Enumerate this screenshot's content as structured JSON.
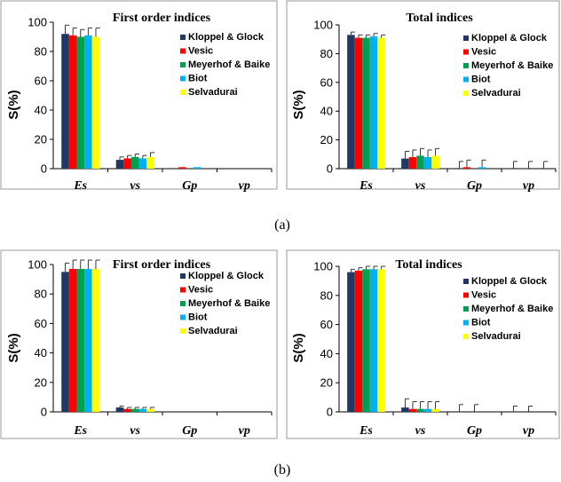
{
  "figure": {
    "captions": [
      "(a)",
      "(b)"
    ]
  },
  "chart_data": [
    {
      "type": "bar",
      "title": "First order indices",
      "ylabel": "S(%)",
      "xlabel": "",
      "ylim": [
        0,
        100
      ],
      "yticks": [
        0,
        20,
        40,
        60,
        80,
        100
      ],
      "categories": [
        "Es",
        "vs",
        "Gp",
        "vp"
      ],
      "legend_position": "top-right",
      "series": [
        {
          "name": "Kloppel & Glock",
          "color": "#1f3864",
          "values": [
            92,
            6,
            0,
            0
          ],
          "errors": [
            6,
            2,
            0,
            0
          ]
        },
        {
          "name": "Vesic",
          "color": "#ff0000",
          "values": [
            91,
            7,
            1,
            0
          ],
          "errors": [
            5,
            2,
            0,
            0
          ]
        },
        {
          "name": "Meyerhof & Baike",
          "color": "#00a050",
          "values": [
            90,
            8,
            0,
            0
          ],
          "errors": [
            5,
            2,
            0,
            0
          ]
        },
        {
          "name": "Biot",
          "color": "#00b0f0",
          "values": [
            91,
            7,
            1,
            0
          ],
          "errors": [
            5,
            2,
            0,
            0
          ]
        },
        {
          "name": "Selvadurai",
          "color": "#ffff00",
          "values": [
            90,
            8,
            0,
            0
          ],
          "errors": [
            6,
            3,
            0,
            0
          ]
        }
      ]
    },
    {
      "type": "bar",
      "title": "Total indices",
      "ylabel": "S(%)",
      "xlabel": "",
      "ylim": [
        0,
        100
      ],
      "yticks": [
        0,
        20,
        40,
        60,
        80,
        100
      ],
      "categories": [
        "Es",
        "vs",
        "Gp",
        "vp"
      ],
      "legend_position": "top-right",
      "series": [
        {
          "name": "Kloppel & Glock",
          "color": "#1f3864",
          "values": [
            93,
            7,
            0,
            0
          ],
          "errors": [
            2,
            5,
            5,
            5
          ]
        },
        {
          "name": "Vesic",
          "color": "#ff0000",
          "values": [
            91,
            8,
            1,
            0
          ],
          "errors": [
            2,
            5,
            5,
            0
          ]
        },
        {
          "name": "Meyerhof & Baike",
          "color": "#00a050",
          "values": [
            91,
            9,
            0,
            0
          ],
          "errors": [
            2,
            5,
            0,
            5
          ]
        },
        {
          "name": "Biot",
          "color": "#00b0f0",
          "values": [
            92,
            8,
            1,
            0
          ],
          "errors": [
            2,
            5,
            5,
            0
          ]
        },
        {
          "name": "Selvadurai",
          "color": "#ffff00",
          "values": [
            91,
            9,
            0,
            0
          ],
          "errors": [
            2,
            5,
            0,
            5
          ]
        }
      ]
    },
    {
      "type": "bar",
      "title": "First order indices",
      "ylabel": "S(%)",
      "xlabel": "",
      "ylim": [
        0,
        100
      ],
      "yticks": [
        0,
        20,
        40,
        60,
        80,
        100
      ],
      "categories": [
        "Es",
        "vs",
        "Gp",
        "vp"
      ],
      "legend_position": "top-right",
      "series": [
        {
          "name": "Kloppel & Glock",
          "color": "#1f3864",
          "values": [
            95,
            3,
            0,
            0
          ],
          "errors": [
            6,
            1,
            0,
            0
          ]
        },
        {
          "name": "Vesic",
          "color": "#ff0000",
          "values": [
            97,
            2,
            0,
            0
          ],
          "errors": [
            6,
            1,
            0,
            0
          ]
        },
        {
          "name": "Meyerhof & Baike",
          "color": "#00a050",
          "values": [
            97,
            2,
            0,
            0
          ],
          "errors": [
            6,
            1,
            0,
            0
          ]
        },
        {
          "name": "Biot",
          "color": "#00b0f0",
          "values": [
            97,
            2,
            0,
            0
          ],
          "errors": [
            6,
            1,
            0,
            0
          ]
        },
        {
          "name": "Selvadurai",
          "color": "#ffff00",
          "values": [
            97,
            2,
            0,
            0
          ],
          "errors": [
            6,
            1,
            0,
            0
          ]
        }
      ]
    },
    {
      "type": "bar",
      "title": "Total indices",
      "ylabel": "S(%)",
      "xlabel": "",
      "ylim": [
        0,
        100
      ],
      "yticks": [
        0,
        20,
        40,
        60,
        80,
        100
      ],
      "categories": [
        "Es",
        "vs",
        "Gp",
        "vp"
      ],
      "legend_position": "top-right",
      "series": [
        {
          "name": "Kloppel & Glock",
          "color": "#1f3864",
          "values": [
            96,
            3,
            0,
            0
          ],
          "errors": [
            2,
            6,
            5,
            4
          ]
        },
        {
          "name": "Vesic",
          "color": "#ff0000",
          "values": [
            97,
            2,
            0,
            0
          ],
          "errors": [
            2,
            5,
            0,
            0
          ]
        },
        {
          "name": "Meyerhof & Baike",
          "color": "#00a050",
          "values": [
            98,
            2,
            0,
            0
          ],
          "errors": [
            2,
            5,
            5,
            4
          ]
        },
        {
          "name": "Biot",
          "color": "#00b0f0",
          "values": [
            98,
            2,
            0,
            0
          ],
          "errors": [
            2,
            5,
            0,
            0
          ]
        },
        {
          "name": "Selvadurai",
          "color": "#ffff00",
          "values": [
            98,
            2,
            0,
            0
          ],
          "errors": [
            2,
            5,
            0,
            0
          ]
        }
      ]
    }
  ]
}
